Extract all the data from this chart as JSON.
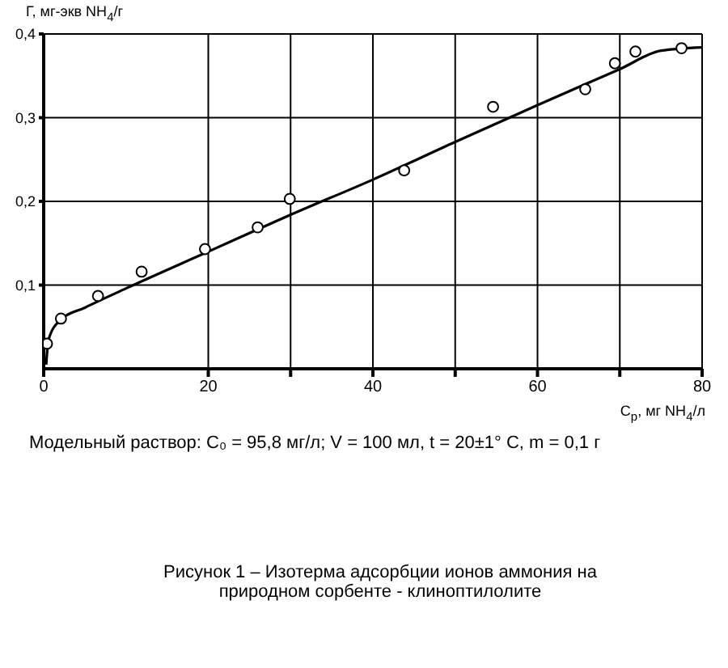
{
  "chart_data": {
    "type": "scatter",
    "title": "Рисунок 1 – Изотерма адсорбции ионов аммония на природном сорбенте - клиноптилолите",
    "xlabel": "C$_{р}$, мг NH$_{4}$/л",
    "ylabel": "Г, мг-экв NH$_{4}$/г",
    "annotations": [
      "Модельный раствор: C₀ = 95,8 мг/л; V = 100 мл, t = 20±1° C, m = 0,1 г"
    ],
    "series": [
      {
        "color": "#000000",
        "marker": "circle",
        "x": [
          0.4,
          2.1,
          6.6,
          11.9,
          19.6,
          26.0,
          29.9,
          43.8,
          54.6,
          65.8,
          69.4,
          71.9,
          77.5
        ],
        "values": [
          0.03,
          0.06,
          0.087,
          0.116,
          0.143,
          0.169,
          0.203,
          0.237,
          0.313,
          0.334,
          0.365,
          0.379,
          0.383
        ]
      },
      {
        "type": "line",
        "color": "#000000",
        "marker": "none",
        "x": [
          0.3,
          0.6,
          2,
          5,
          10,
          20,
          30,
          40,
          50,
          60,
          70,
          75,
          80
        ],
        "values": [
          0.005,
          0.035,
          0.058,
          0.073,
          0.096,
          0.14,
          0.184,
          0.226,
          0.271,
          0.315,
          0.358,
          0.38,
          0.384
        ]
      }
    ],
    "xlim": [
      0,
      80
    ],
    "xticks": [
      0,
      20,
      {
        "value": 30,
        "label": null
      },
      40,
      {
        "value": 50,
        "label": null
      },
      60,
      {
        "value": 70,
        "label": null
      },
      80
    ],
    "ylim": [
      0,
      0.4
    ],
    "yticks": [
      {
        "value": 0.1,
        "label": "0,1"
      },
      {
        "value": 0.2,
        "label": "0,2"
      },
      {
        "value": 0.3,
        "label": "0,3"
      },
      {
        "value": 0.4,
        "label": "0,4"
      }
    ],
    "grid": true
  }
}
